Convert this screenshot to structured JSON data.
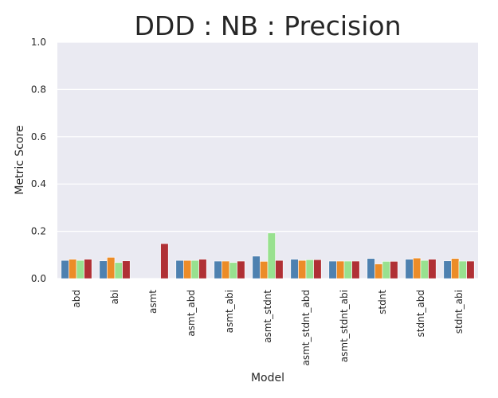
{
  "chart_data": {
    "type": "bar",
    "title": "DDD : NB : Precision",
    "xlabel": "Model",
    "ylabel": "Metric Score",
    "ylim": [
      0,
      1.0
    ],
    "yticks": [
      "0.0",
      "0.2",
      "0.4",
      "0.6",
      "0.8",
      "1.0"
    ],
    "grid": "horizontal",
    "legend": "none",
    "categories": [
      "abd",
      "abi",
      "asmt",
      "asmt_abd",
      "asmt_abi",
      "asmt_stdnt",
      "asmt_stdnt_abd",
      "asmt_stdnt_abi",
      "stdnt",
      "stdnt_abd",
      "stdnt_abi"
    ],
    "series": [
      {
        "color": "#4e81b0",
        "values": [
          0.077,
          0.075,
          0.0,
          0.077,
          0.074,
          0.095,
          0.082,
          0.074,
          0.085,
          0.082,
          0.075
        ]
      },
      {
        "color": "#ec8c28",
        "values": [
          0.082,
          0.09,
          0.0,
          0.077,
          0.074,
          0.073,
          0.077,
          0.074,
          0.062,
          0.087,
          0.085
        ]
      },
      {
        "color": "#98e18f",
        "values": [
          0.077,
          0.068,
          0.0,
          0.077,
          0.068,
          0.193,
          0.08,
          0.074,
          0.073,
          0.077,
          0.074
        ]
      },
      {
        "color": "#b03035",
        "values": [
          0.082,
          0.075,
          0.148,
          0.082,
          0.074,
          0.077,
          0.08,
          0.074,
          0.073,
          0.082,
          0.074
        ]
      }
    ],
    "colors": {
      "plot_background": "#eaeaf2",
      "grid": "#ffffff",
      "text": "#262626"
    }
  }
}
